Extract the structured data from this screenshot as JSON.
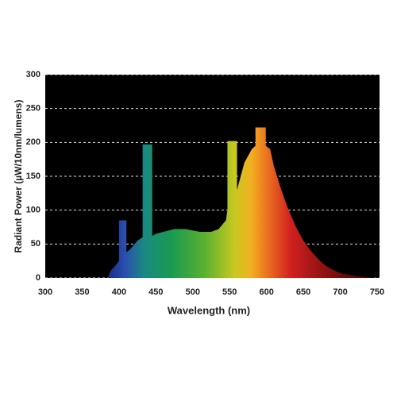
{
  "chart_data": {
    "type": "area",
    "xlabel": "Wavelength (nm)",
    "ylabel": "Radiant Power (µW/10nm/lumens)",
    "x": [
      385,
      388,
      395,
      400,
      400,
      410,
      410,
      415,
      425,
      432,
      432,
      445,
      445,
      450,
      460,
      475,
      490,
      500,
      510,
      525,
      535,
      545,
      547,
      547,
      560,
      560,
      570,
      580,
      585,
      585,
      599,
      599,
      605,
      610,
      620,
      630,
      640,
      650,
      660,
      670,
      680,
      690,
      700,
      720,
      740,
      750
    ],
    "values": [
      0,
      10,
      18,
      25,
      85,
      85,
      38,
      42,
      55,
      60,
      197,
      197,
      62,
      65,
      68,
      72,
      72,
      70,
      68,
      68,
      72,
      85,
      100,
      202,
      202,
      130,
      170,
      190,
      195,
      222,
      222,
      195,
      190,
      165,
      130,
      100,
      75,
      55,
      40,
      28,
      18,
      12,
      7,
      3,
      1,
      0
    ],
    "xlim": [
      300,
      750
    ],
    "xticks": [
      300,
      350,
      400,
      450,
      500,
      550,
      600,
      650,
      700,
      750
    ],
    "ylim": [
      0,
      300
    ],
    "yticks": [
      0,
      50,
      100,
      150,
      200,
      250,
      300
    ],
    "grid": true
  }
}
